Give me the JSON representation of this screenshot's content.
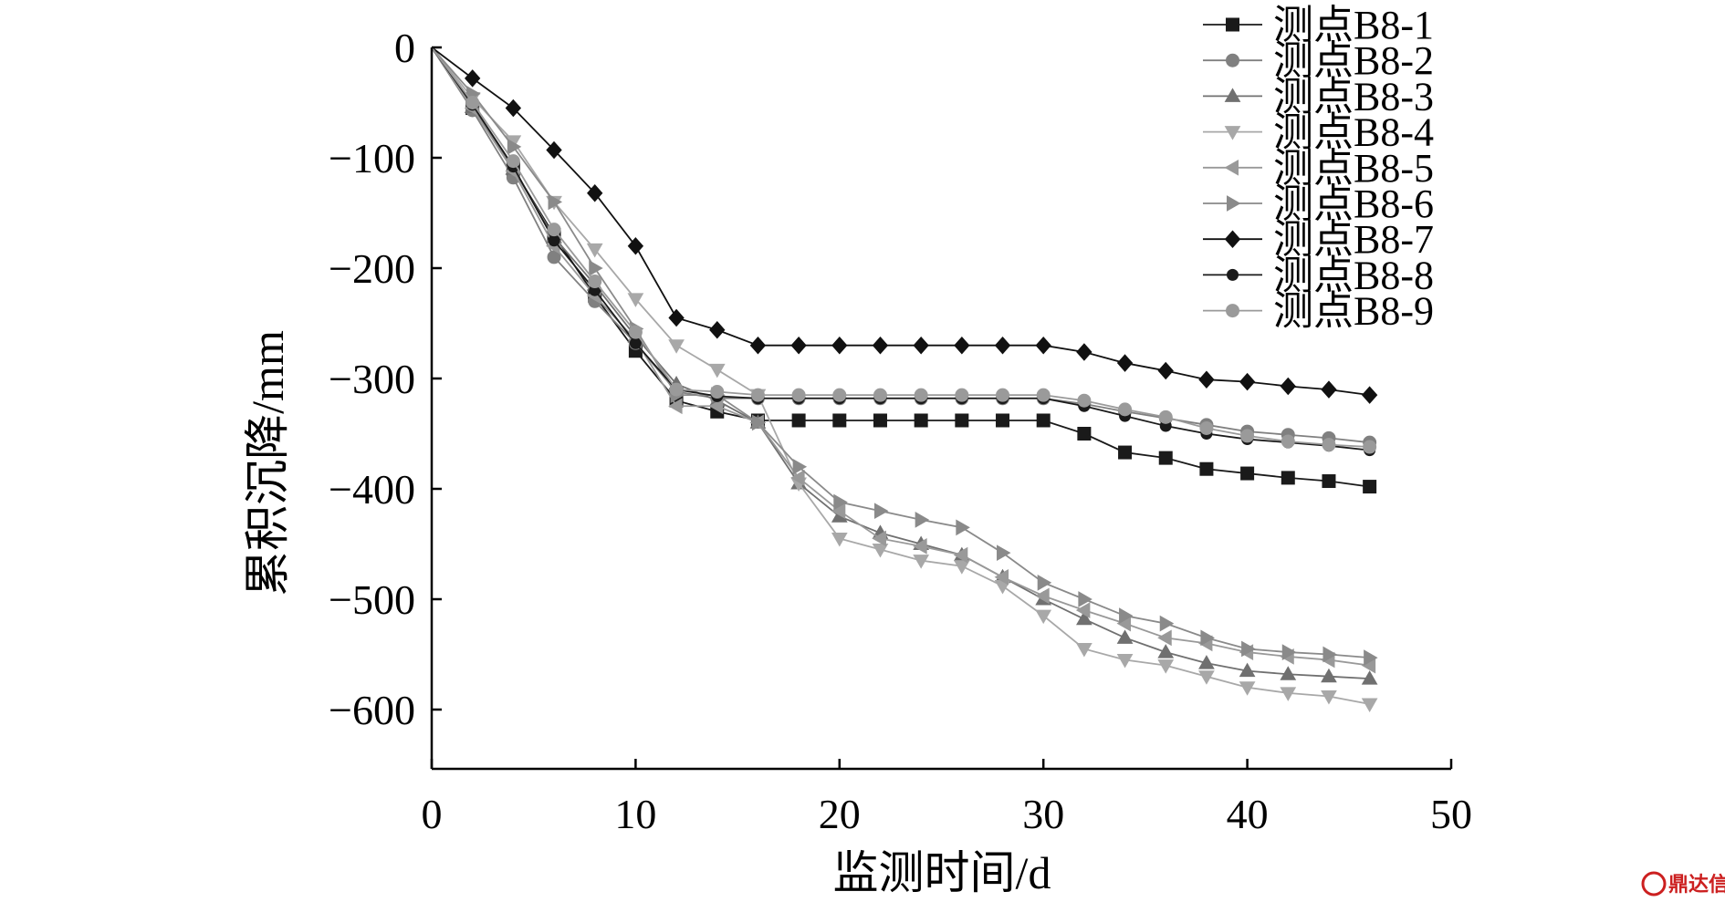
{
  "chart_data": {
    "type": "line",
    "xlabel": "监测时间/d",
    "ylabel": "累积沉降/mm",
    "xlim": [
      0,
      50
    ],
    "ylim": [
      -650,
      0
    ],
    "xticks": [
      0,
      10,
      20,
      30,
      40,
      50
    ],
    "yticks": [
      0,
      -100,
      -200,
      -300,
      -400,
      -500,
      -600
    ],
    "xtick_labels": [
      "0",
      "10",
      "20",
      "30",
      "40",
      "50"
    ],
    "ytick_labels": [
      "0",
      "−100",
      "−200",
      "−300",
      "−400",
      "−500",
      "−600"
    ],
    "grid": false,
    "legend_position": "top-right",
    "x": [
      0,
      2,
      4,
      6,
      8,
      10,
      12,
      14,
      16,
      18,
      20,
      22,
      24,
      26,
      28,
      30,
      32,
      34,
      36,
      38,
      40,
      42,
      44,
      46
    ],
    "series": [
      {
        "name": "测点B8-1",
        "marker": "square",
        "color": "#1a1a1a",
        "values": [
          0,
          -55,
          -110,
          -170,
          -225,
          -275,
          -320,
          -330,
          -338,
          -338,
          -338,
          -338,
          -338,
          -338,
          -338,
          -338,
          -350,
          -367,
          -372,
          -382,
          -386,
          -390,
          -393,
          -398
        ]
      },
      {
        "name": "测点B8-2",
        "marker": "circle",
        "color": "#808080",
        "values": [
          0,
          -57,
          -118,
          -190,
          -230,
          -268,
          -312,
          -318,
          -318,
          -318,
          -318,
          -318,
          -318,
          -318,
          -318,
          -318,
          -323,
          -330,
          -336,
          -342,
          -348,
          -351,
          -354,
          -358
        ]
      },
      {
        "name": "测点B8-3",
        "marker": "triangle-up",
        "color": "#707070",
        "values": [
          0,
          -54,
          -110,
          -172,
          -215,
          -262,
          -305,
          -320,
          -340,
          -395,
          -425,
          -440,
          -450,
          -460,
          -480,
          -500,
          -518,
          -535,
          -548,
          -558,
          -565,
          -568,
          -570,
          -572
        ]
      },
      {
        "name": "测点B8-4",
        "marker": "triangle-down",
        "color": "#a8a8a8",
        "values": [
          0,
          -46,
          -85,
          -140,
          -183,
          -228,
          -270,
          -292,
          -315,
          -395,
          -445,
          -455,
          -465,
          -470,
          -488,
          -515,
          -545,
          -555,
          -560,
          -570,
          -580,
          -585,
          -588,
          -595
        ]
      },
      {
        "name": "测点B8-5",
        "marker": "triangle-left",
        "color": "#999999",
        "values": [
          0,
          -55,
          -112,
          -180,
          -225,
          -265,
          -325,
          -325,
          -340,
          -390,
          -420,
          -445,
          -452,
          -460,
          -480,
          -497,
          -510,
          -522,
          -535,
          -540,
          -548,
          -552,
          -555,
          -560
        ]
      },
      {
        "name": "测点B8-6",
        "marker": "triangle-right",
        "color": "#8a8a8a",
        "values": [
          0,
          -42,
          -90,
          -140,
          -200,
          -255,
          -315,
          -315,
          -340,
          -380,
          -412,
          -420,
          -428,
          -435,
          -458,
          -485,
          -500,
          -515,
          -522,
          -535,
          -545,
          -548,
          -550,
          -553
        ]
      },
      {
        "name": "测点B8-7",
        "marker": "diamond",
        "color": "#111111",
        "values": [
          0,
          -28,
          -55,
          -93,
          -132,
          -180,
          -245,
          -256,
          -270,
          -270,
          -270,
          -270,
          -270,
          -270,
          -270,
          -270,
          -276,
          -286,
          -293,
          -301,
          -303,
          -307,
          -310,
          -315
        ]
      },
      {
        "name": "测点B8-8",
        "marker": "dot",
        "color": "#1a1a1a",
        "values": [
          0,
          -52,
          -108,
          -175,
          -220,
          -268,
          -310,
          -316,
          -318,
          -318,
          -318,
          -318,
          -318,
          -318,
          -318,
          -318,
          -325,
          -334,
          -343,
          -350,
          -355,
          -358,
          -361,
          -365
        ]
      },
      {
        "name": "测点B8-9",
        "marker": "circle",
        "color": "#9a9a9a",
        "values": [
          0,
          -50,
          -103,
          -165,
          -212,
          -258,
          -310,
          -312,
          -315,
          -315,
          -315,
          -315,
          -315,
          -315,
          -315,
          -315,
          -320,
          -328,
          -335,
          -345,
          -352,
          -357,
          -360,
          -362
        ]
      }
    ]
  },
  "watermark": {
    "text": "鼎达信",
    "icon": "logo-icon"
  }
}
